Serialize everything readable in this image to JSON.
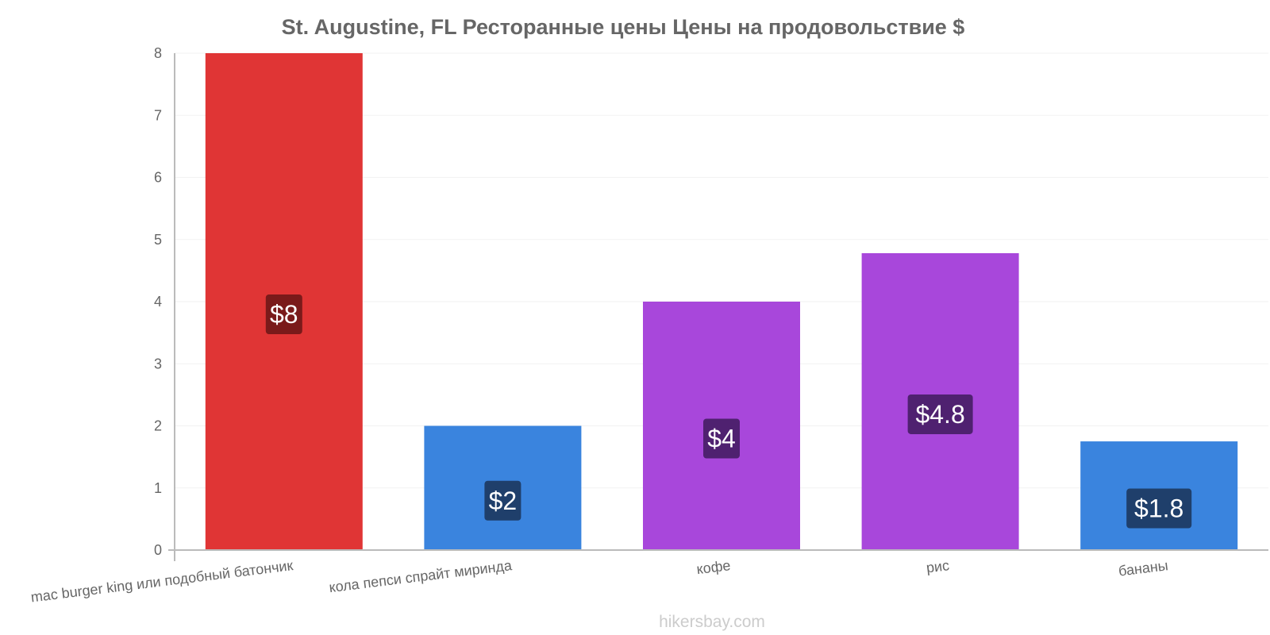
{
  "chart_data": {
    "type": "bar",
    "title": "St. Augustine, FL Ресторанные цены Цены на продовольствие $",
    "categories": [
      "mac burger king или подобный батончик",
      "кола пепси спрайт миринда",
      "кофе",
      "рис",
      "бананы"
    ],
    "values": [
      8,
      2,
      4,
      4.78,
      1.75
    ],
    "data_labels": [
      "$8",
      "$2",
      "$4",
      "$4.8",
      "$1.8"
    ],
    "bar_colors": [
      "#e03535",
      "#3a84de",
      "#a847db",
      "#a847db",
      "#3a84de"
    ],
    "label_box_colors": [
      "#7a1a1a",
      "#1f3f6b",
      "#4f2170",
      "#4f2170",
      "#1f3f6b"
    ],
    "yticks": [
      "0",
      "1",
      "2",
      "3",
      "4",
      "5",
      "6",
      "7",
      "8"
    ],
    "ylim": [
      0,
      8
    ],
    "xlabel": "",
    "ylabel": "",
    "grid": true,
    "source": "hikersbay.com"
  }
}
